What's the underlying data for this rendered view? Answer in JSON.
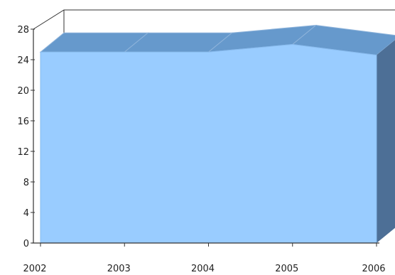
{
  "chart_data": {
    "type": "area",
    "title": "",
    "xlabel": "",
    "ylabel": "",
    "x": [
      "2002",
      "2003",
      "2004",
      "2005",
      "2006"
    ],
    "series": [
      {
        "values": [
          25,
          25,
          25,
          26,
          24.6
        ]
      }
    ],
    "ylim": [
      0,
      28
    ],
    "yticks": [
      0,
      4,
      8,
      12,
      16,
      20,
      24,
      28
    ],
    "grid": false,
    "legend": "none",
    "style": "3d",
    "colors": {
      "front": "#99ccff",
      "top": "#6699cc",
      "side": "#4d6f96",
      "axis": "#333333"
    }
  }
}
